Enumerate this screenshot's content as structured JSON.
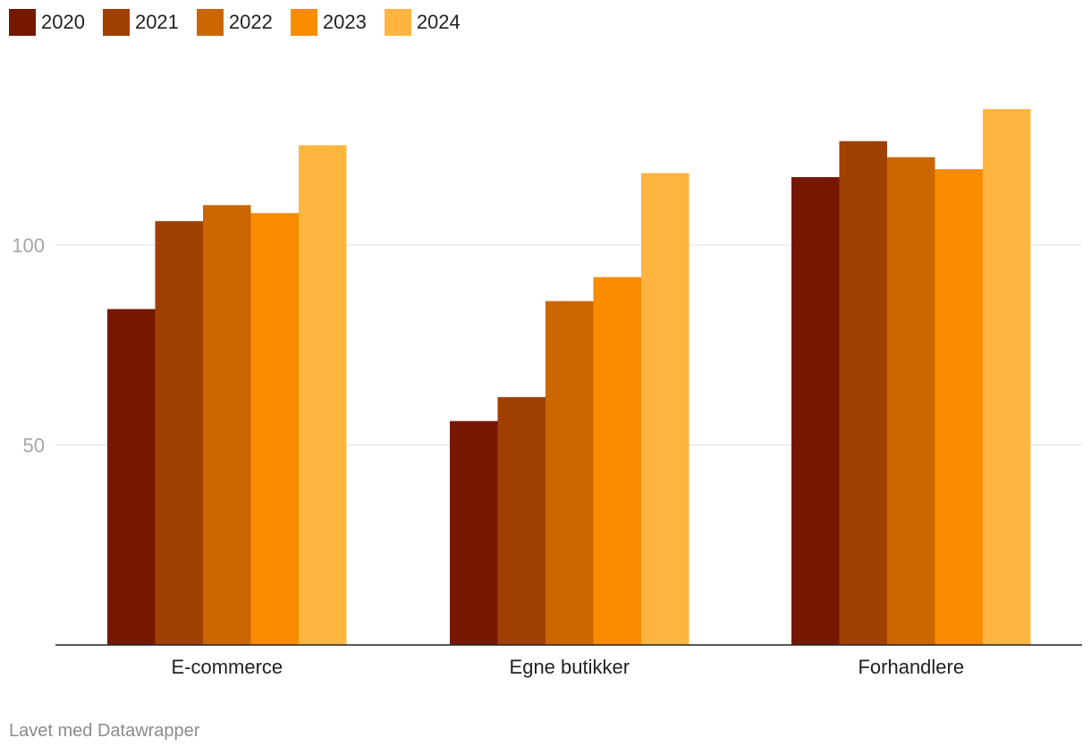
{
  "chart_data": {
    "type": "bar",
    "categories": [
      "E-commerce",
      "Egne butikker",
      "Forhandlere"
    ],
    "series": [
      {
        "name": "2020",
        "color": "#761800",
        "values": [
          84,
          56,
          117
        ]
      },
      {
        "name": "2021",
        "color": "#a04000",
        "values": [
          106,
          62,
          126
        ]
      },
      {
        "name": "2022",
        "color": "#cc6600",
        "values": [
          110,
          86,
          122
        ]
      },
      {
        "name": "2023",
        "color": "#fb8c00",
        "values": [
          108,
          92,
          119
        ]
      },
      {
        "name": "2024",
        "color": "#ffb540",
        "values": [
          125,
          118,
          134
        ]
      }
    ],
    "ylim": [
      0,
      134
    ],
    "yticks": [
      50,
      100
    ],
    "grid": true,
    "legend_position": "top-left",
    "title": "",
    "xlabel": "",
    "ylabel": ""
  },
  "footer": {
    "credit": "Lavet med Datawrapper"
  }
}
